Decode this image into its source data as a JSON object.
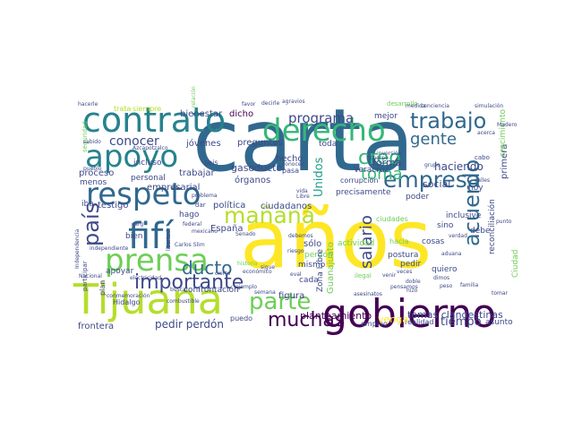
{
  "wordcloud": {
    "palette": {
      "dark_purple": "#440154",
      "purple": "#482878",
      "indigo": "#3e4989",
      "blue": "#31688e",
      "teal_blue": "#26828e",
      "teal": "#1f9e89",
      "green": "#35b779",
      "lime": "#6ece58",
      "yellow_green": "#b5de2b",
      "yellow": "#fde725"
    },
    "words": [
      {
        "text": "carta",
        "color": "#31688e"
      },
      {
        "text": "años",
        "color": "#fde725"
      },
      {
        "text": "gobierno",
        "color": "#440154"
      },
      {
        "text": "Tijuana",
        "color": "#b5de2b"
      },
      {
        "text": "contrato",
        "color": "#26828e"
      },
      {
        "text": "derecho",
        "color": "#35b779"
      },
      {
        "text": "apoyo",
        "color": "#26828e"
      },
      {
        "text": "respeto",
        "color": "#31688e"
      },
      {
        "text": "fifí",
        "color": "#31688e"
      },
      {
        "text": "prensa",
        "color": "#6ece58"
      },
      {
        "text": "trabajo",
        "color": "#31688e"
      },
      {
        "text": "empresa",
        "color": "#31688e"
      },
      {
        "text": "parte",
        "color": "#6ece58"
      },
      {
        "text": "mañana",
        "color": "#b5de2b"
      },
      {
        "text": "país",
        "color": "#3e4989"
      },
      {
        "text": "importante",
        "color": "#3e4989"
      },
      {
        "text": "muchas",
        "color": "#440154"
      },
      {
        "text": "ducto",
        "color": "#31688e"
      },
      {
        "text": "acuerdo",
        "color": "#31688e"
      },
      {
        "text": "gente",
        "color": "#31688e"
      },
      {
        "text": "programa",
        "color": "#3e4989"
      },
      {
        "text": "creo",
        "color": "#35b779"
      },
      {
        "text": "salario",
        "color": "#3e4989"
      },
      {
        "text": "toma",
        "color": "#35b779"
      },
      {
        "text": "conocer",
        "color": "#3e4989"
      },
      {
        "text": "tiempo",
        "color": "#3e4989"
      },
      {
        "text": "pedir perdón",
        "color": "#3e4989"
      },
      {
        "text": "tomas clandestinas",
        "color": "#3e4989"
      },
      {
        "text": "planteamiento",
        "color": "#440154"
      },
      {
        "text": "haciendo",
        "color": "#3e4989"
      },
      {
        "text": "forma",
        "color": "#3e4989"
      },
      {
        "text": "social",
        "color": "#3e4989"
      },
      {
        "text": "gasoducto",
        "color": "#3e4989"
      },
      {
        "text": "Unidos",
        "color": "#1f9e89"
      },
      {
        "text": "bienestar",
        "color": "#3e4989"
      },
      {
        "text": "dicho",
        "color": "#440154"
      },
      {
        "text": "preguntas",
        "color": "#3e4989"
      },
      {
        "text": "jóvenes",
        "color": "#3e4989"
      },
      {
        "text": "proceso",
        "color": "#3e4989"
      },
      {
        "text": "trabajar",
        "color": "#3e4989"
      },
      {
        "text": "hecho",
        "color": "#3e4989"
      },
      {
        "text": "órganos",
        "color": "#3e4989"
      },
      {
        "text": "empresarial",
        "color": "#3e4989"
      },
      {
        "text": "testigo",
        "color": "#3e4989"
      },
      {
        "text": "política",
        "color": "#3e4989"
      },
      {
        "text": "España",
        "color": "#3e4989"
      },
      {
        "text": "ciudadanos",
        "color": "#3e4989"
      },
      {
        "text": "sólo",
        "color": "#3e4989"
      },
      {
        "text": "mismo",
        "color": "#3e4989"
      },
      {
        "text": "cada",
        "color": "#3e4989"
      },
      {
        "text": "figura",
        "color": "#3e4989"
      },
      {
        "text": "confrontación",
        "color": "#3e4989"
      },
      {
        "text": "frontera",
        "color": "#3e4989"
      },
      {
        "text": "apoyar",
        "color": "#3e4989"
      },
      {
        "text": "hoy",
        "color": "#3e4989"
      },
      {
        "text": "debe",
        "color": "#3e4989"
      },
      {
        "text": "sino",
        "color": "#3e4989"
      },
      {
        "text": "inclusive",
        "color": "#3e4989"
      },
      {
        "text": "cosas",
        "color": "#3e4989"
      },
      {
        "text": "pedir",
        "color": "#3e4989"
      },
      {
        "text": "postura",
        "color": "#3e4989"
      },
      {
        "text": "quiero",
        "color": "#3e4989"
      },
      {
        "text": "poder",
        "color": "#3e4989"
      },
      {
        "text": "mejor",
        "color": "#3e4989"
      },
      {
        "text": "toda",
        "color": "#3e4989"
      },
      {
        "text": "precisamente",
        "color": "#3e4989"
      },
      {
        "text": "Veracruz",
        "color": "#3e4989"
      },
      {
        "text": "corrupción",
        "color": "#3e4989"
      },
      {
        "text": "asunto",
        "color": "#3e4989"
      },
      {
        "text": "menos",
        "color": "#3e4989"
      },
      {
        "text": "personal",
        "color": "#3e4989"
      },
      {
        "text": "incluso",
        "color": "#3e4989"
      },
      {
        "text": "trata",
        "color": "#b5de2b"
      },
      {
        "text": "siempre",
        "color": "#b5de2b"
      },
      {
        "text": "seis",
        "color": "#3e4989"
      },
      {
        "text": "pasa",
        "color": "#3e4989"
      },
      {
        "text": "iba",
        "color": "#3e4989"
      },
      {
        "text": "bien",
        "color": "#3e4989"
      },
      {
        "text": "hago",
        "color": "#3e4989"
      },
      {
        "text": "dar",
        "color": "#3e4989"
      },
      {
        "text": "plan",
        "color": "#3e4989"
      },
      {
        "text": "Hidalgo",
        "color": "#3e4989"
      },
      {
        "text": "puedo",
        "color": "#3e4989"
      },
      {
        "text": "empleo",
        "color": "#3e4989"
      },
      {
        "text": "realidad",
        "color": "#3e4989"
      },
      {
        "text": "venga",
        "color": "#fde725"
      },
      {
        "text": "actividad",
        "color": "#6ece58"
      },
      {
        "text": "ciudades",
        "color": "#6ece58"
      },
      {
        "text": "perdón",
        "color": "#6ece58"
      },
      {
        "text": "Guanajuato",
        "color": "#6ece58"
      },
      {
        "text": "Zona Libre",
        "color": "#3e4989"
      },
      {
        "text": "reconciliación",
        "color": "#3e4989"
      },
      {
        "text": "primera",
        "color": "#3e4989"
      },
      {
        "text": "Ciudad",
        "color": "#6ece58"
      },
      {
        "text": "crecimiento",
        "color": "#6ece58"
      },
      {
        "text": "desarrollo",
        "color": "#6ece58"
      },
      {
        "text": "conciencia",
        "color": "#3e4989"
      },
      {
        "text": "simulación",
        "color": "#3e4989"
      },
      {
        "text": "acerca",
        "color": "#3e4989"
      },
      {
        "text": "hacia",
        "color": "#6ece58"
      },
      {
        "text": "seguridad",
        "color": "#6ece58"
      },
      {
        "text": "ilegal",
        "color": "#6ece58"
      },
      {
        "text": "cabo",
        "color": "#3e4989"
      },
      {
        "text": "asesinatos",
        "color": "#3e4989"
      },
      {
        "text": "cuerpo",
        "color": "#3e4989"
      },
      {
        "text": "medida",
        "color": "#3e4989"
      },
      {
        "text": "inversión",
        "color": "#3e4989"
      },
      {
        "text": "grupo",
        "color": "#3e4989"
      },
      {
        "text": "vida",
        "color": "#3e4989"
      },
      {
        "text": "Libre",
        "color": "#3e4989"
      },
      {
        "text": "peso",
        "color": "#3e4989"
      },
      {
        "text": "Madero",
        "color": "#3e4989"
      },
      {
        "text": "hacerle",
        "color": "#3e4989"
      },
      {
        "text": "decirle",
        "color": "#3e4989"
      },
      {
        "text": "favor",
        "color": "#3e4989"
      },
      {
        "text": "agravios",
        "color": "#3e4989"
      },
      {
        "text": "sabido",
        "color": "#3e4989"
      },
      {
        "text": "pueblo",
        "color": "#3e4989"
      },
      {
        "text": "Azcapotzalco",
        "color": "#3e4989"
      },
      {
        "text": "problema",
        "color": "#3e4989"
      },
      {
        "text": "mexicano",
        "color": "#3e4989"
      },
      {
        "text": "Carlos Slim",
        "color": "#3e4989"
      },
      {
        "text": "federal",
        "color": "#3e4989"
      },
      {
        "text": "combustible",
        "color": "#3e4989"
      },
      {
        "text": "conmemoración",
        "color": "#3e4989"
      },
      {
        "text": "buscar",
        "color": "#3e4989"
      },
      {
        "text": "historia",
        "color": "#6ece58"
      },
      {
        "text": "económico",
        "color": "#3e4989"
      },
      {
        "text": "Independencia",
        "color": "#3e4989"
      },
      {
        "text": "Nacional",
        "color": "#3e4989"
      },
      {
        "text": "participar",
        "color": "#3e4989"
      },
      {
        "text": "independiente",
        "color": "#3e4989"
      },
      {
        "text": "semana",
        "color": "#3e4989"
      },
      {
        "text": "dimos",
        "color": "#3e4989"
      },
      {
        "text": "eval",
        "color": "#3e4989"
      },
      {
        "text": "riesgo",
        "color": "#3e4989"
      },
      {
        "text": "debemos",
        "color": "#3e4989"
      },
      {
        "text": "familia",
        "color": "#3e4989"
      },
      {
        "text": "tomar",
        "color": "#3e4989"
      },
      {
        "text": "hizo",
        "color": "#3e4989"
      },
      {
        "text": "doble",
        "color": "#3e4989"
      },
      {
        "text": "veces",
        "color": "#3e4989"
      },
      {
        "text": "venir",
        "color": "#3e4989"
      },
      {
        "text": "ejemplo",
        "color": "#3e4989"
      },
      {
        "text": "sigue",
        "color": "#3e4989"
      },
      {
        "text": "calles",
        "color": "#3e4989"
      },
      {
        "text": "libertad",
        "color": "#3e4989"
      },
      {
        "text": "Senado",
        "color": "#3e4989"
      },
      {
        "text": "punto",
        "color": "#3e4989"
      },
      {
        "text": "conocen",
        "color": "#3e4989"
      },
      {
        "text": "cierto",
        "color": "#3e4989"
      },
      {
        "text": "carg",
        "color": "#3e4989"
      },
      {
        "text": "verdad",
        "color": "#3e4989"
      },
      {
        "text": "relación",
        "color": "#6ece58"
      },
      {
        "text": "pensamos",
        "color": "#3e4989"
      },
      {
        "text": "electricidad",
        "color": "#3e4989"
      },
      {
        "text": "aduana",
        "color": "#3e4989"
      }
    ]
  }
}
